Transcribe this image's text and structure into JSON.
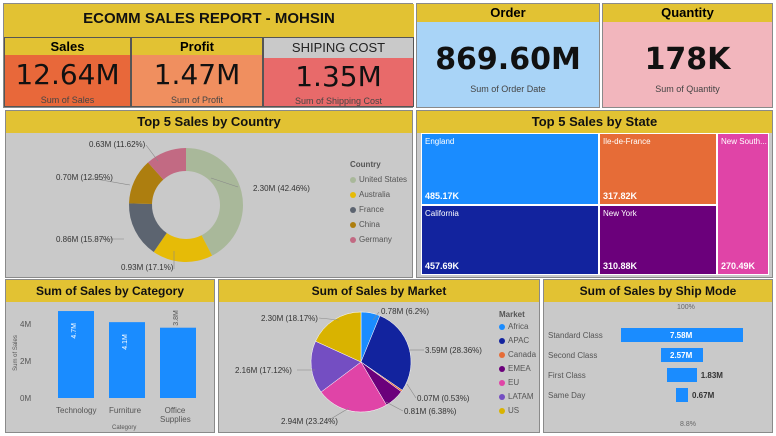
{
  "header": {
    "title": "ECOMM SALES REPORT - MOHSIN",
    "sales_label": "Sales",
    "sales_value": "12.64M",
    "sales_sub": "Sum of Sales",
    "profit_label": "Profit",
    "profit_value": "1.47M",
    "profit_sub": "Sum of Profit",
    "ship_label": "SHIPING COST",
    "ship_value": "1.35M",
    "ship_sub": "Sum of Shipping Cost",
    "order_label": "Order",
    "order_value": "869.60M",
    "order_sub": "Sum of Order Date",
    "qty_label": "Quantity",
    "qty_value": "178K",
    "qty_sub": "Sum of Quantity"
  },
  "colors": {
    "title_bar": "#e2c233",
    "sales_bg": "#e8683a",
    "profit_bg": "#f08f5f",
    "ship_bg": "#e86a6a",
    "order_bg": "#a9d4f7",
    "qty_bg": "#f2b6bd",
    "panel_bg": "#c9c9c9",
    "bar_blue": "#1a8cff"
  },
  "country": {
    "title": "Top 5 Sales by Country",
    "legend_title": "Country",
    "legend": [
      {
        "name": "United States",
        "color": "#a9b89a"
      },
      {
        "name": "Australia",
        "color": "#e6bb07"
      },
      {
        "name": "France",
        "color": "#5c6470"
      },
      {
        "name": "China",
        "color": "#ad7e0f"
      },
      {
        "name": "Germany",
        "color": "#c26a83"
      }
    ],
    "labels": {
      "us": "2.30M (42.46%)",
      "au": "0.93M (17.1%)",
      "fr": "0.86M (15.87%)",
      "cn": "0.70M (12.95%)",
      "de": "0.63M (11.62%)"
    }
  },
  "state": {
    "title": "Top 5 Sales by State",
    "cells": [
      {
        "name": "England",
        "value": "485.17K",
        "color": "#1a8cff"
      },
      {
        "name": "California",
        "value": "457.69K",
        "color": "#12239e"
      },
      {
        "name": "Ile-de-France",
        "value": "317.82K",
        "color": "#e66c37"
      },
      {
        "name": "New York",
        "value": "310.88K",
        "color": "#6b007b"
      },
      {
        "name": "New South...",
        "value": "270.49K",
        "color": "#e044a7"
      }
    ]
  },
  "category": {
    "title": "Sum of Sales by Category",
    "yaxis_label": "Sum of Sales",
    "xaxis_label": "Category",
    "ticks": [
      "4M",
      "2M",
      "0M"
    ],
    "bar_labels": [
      "4.7M",
      "4.1M",
      "3.8M"
    ],
    "categories": [
      "Technology",
      "Furniture",
      "Office Supplies"
    ]
  },
  "market": {
    "title": "Sum of Sales by Market",
    "legend_title": "Market",
    "legend": [
      {
        "name": "Africa",
        "color": "#1a8cff"
      },
      {
        "name": "APAC",
        "color": "#12239e"
      },
      {
        "name": "Canada",
        "color": "#e66c37"
      },
      {
        "name": "EMEA",
        "color": "#6b007b"
      },
      {
        "name": "EU",
        "color": "#e044a7"
      },
      {
        "name": "LATAM",
        "color": "#744ec2"
      },
      {
        "name": "US",
        "color": "#d9b300"
      }
    ],
    "labels": {
      "africa": "0.78M (6.2%)",
      "apac": "3.59M (28.36%)",
      "canada": "0.07M (0.53%)",
      "emea": "0.81M (6.38%)",
      "eu": "2.94M (23.24%)",
      "latam": "2.16M (17.12%)",
      "us": "2.30M (18.17%)"
    }
  },
  "shipmode": {
    "title": "Sum of Sales by Ship Mode",
    "top_pct": "100%",
    "bottom_pct": "8.8%",
    "rows": [
      {
        "name": "Standard Class",
        "value": "7.58M"
      },
      {
        "name": "Second Class",
        "value": "2.57M"
      },
      {
        "name": "First Class",
        "value": "1.83M"
      },
      {
        "name": "Same Day",
        "value": "0.67M"
      }
    ]
  },
  "chart_data": [
    {
      "type": "pie",
      "title": "Top 5 Sales by Country",
      "categories": [
        "United States",
        "Australia",
        "France",
        "China",
        "Germany"
      ],
      "values": [
        2.3,
        0.93,
        0.86,
        0.7,
        0.63
      ]
    },
    {
      "type": "bar",
      "title": "Sum of Sales by Category",
      "categories": [
        "Technology",
        "Furniture",
        "Office Supplies"
      ],
      "values": [
        4.7,
        4.1,
        3.8
      ],
      "xlabel": "Category",
      "ylabel": "Sum of Sales",
      "ylim": [
        0,
        5
      ]
    },
    {
      "type": "pie",
      "title": "Sum of Sales by Market",
      "categories": [
        "Africa",
        "APAC",
        "Canada",
        "EMEA",
        "EU",
        "LATAM",
        "US"
      ],
      "values": [
        0.78,
        3.59,
        0.07,
        0.81,
        2.94,
        2.16,
        2.3
      ]
    },
    {
      "type": "bar",
      "title": "Sum of Sales by Ship Mode",
      "categories": [
        "Standard Class",
        "Second Class",
        "First Class",
        "Same Day"
      ],
      "values": [
        7.58,
        2.57,
        1.83,
        0.67
      ]
    }
  ]
}
